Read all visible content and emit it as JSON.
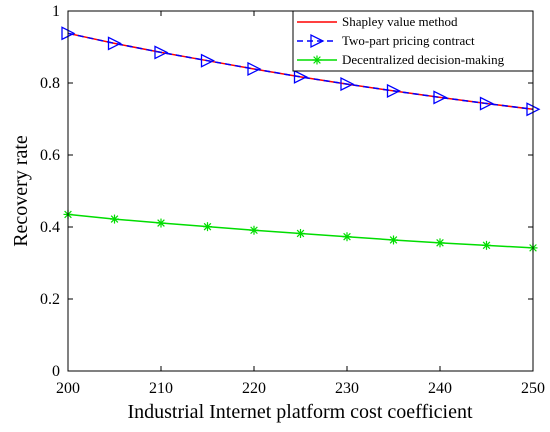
{
  "chart_data": {
    "type": "line",
    "xlabel": "Industrial Internet platform cost coefficient",
    "ylabel": "Recovery rate",
    "xlim": [
      200,
      250
    ],
    "ylim": [
      0,
      1
    ],
    "xticks": [
      "200",
      "210",
      "220",
      "230",
      "240",
      "250"
    ],
    "yticks": [
      "0",
      "0.2",
      "0.4",
      "0.6",
      "0.8",
      "1"
    ],
    "grid": false,
    "legend_position": "top-right",
    "x": [
      200,
      205,
      210,
      215,
      220,
      225,
      230,
      235,
      240,
      245,
      250
    ],
    "series": [
      {
        "name": "Shapley value method",
        "color": "#ff0000",
        "line_style": "solid",
        "marker": "none",
        "values": [
          0.938,
          0.91,
          0.885,
          0.862,
          0.839,
          0.817,
          0.797,
          0.778,
          0.76,
          0.743,
          0.727
        ]
      },
      {
        "name": "Two-part pricing contract",
        "color": "#0000ff",
        "line_style": "dashed",
        "marker": "right-triangle",
        "values": [
          0.938,
          0.91,
          0.885,
          0.862,
          0.839,
          0.817,
          0.797,
          0.778,
          0.76,
          0.743,
          0.727
        ]
      },
      {
        "name": "Decentralized decision-making",
        "color": "#00dd00",
        "line_style": "solid",
        "marker": "asterisk",
        "values": [
          0.435,
          0.422,
          0.411,
          0.401,
          0.391,
          0.382,
          0.373,
          0.364,
          0.356,
          0.349,
          0.342
        ]
      }
    ]
  }
}
